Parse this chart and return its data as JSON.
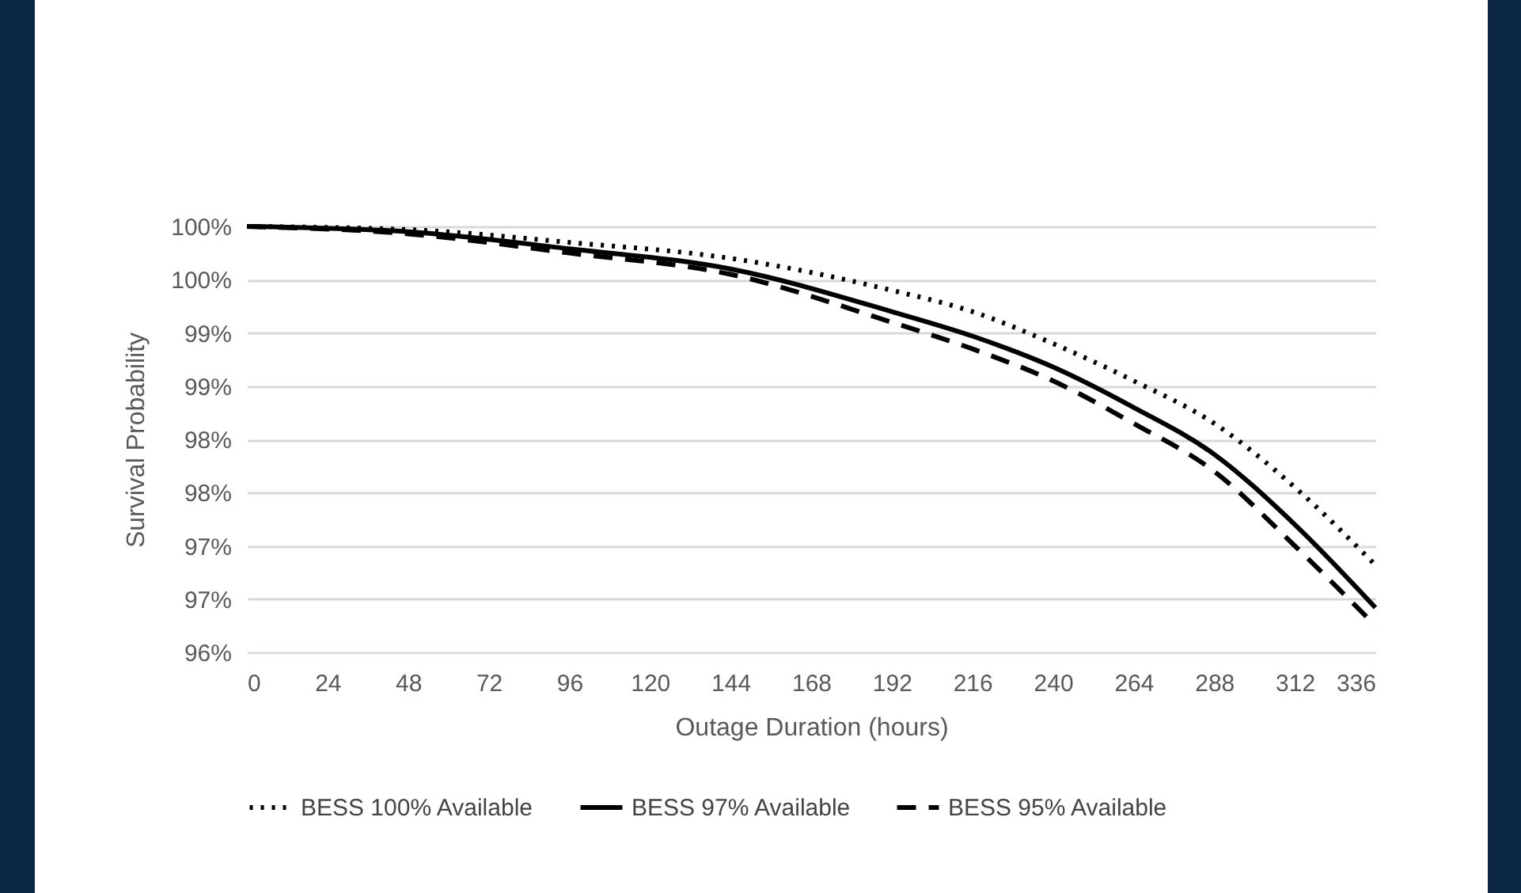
{
  "chart_data": {
    "type": "line",
    "xlabel": "Outage Duration (hours)",
    "ylabel": "Survival Probability",
    "x": [
      0,
      48,
      96,
      144,
      192,
      216,
      240,
      264,
      288,
      312,
      336
    ],
    "series": [
      {
        "name": "BESS 100% Available",
        "color": "#000000",
        "line_style": "dotted",
        "values": [
          100,
          99.97,
          99.85,
          99.7,
          99.4,
          99.2,
          98.9,
          98.55,
          98.15,
          97.55,
          96.82
        ]
      },
      {
        "name": "BESS 97% Available",
        "color": "#000000",
        "line_style": "solid",
        "values": [
          100,
          99.95,
          99.79,
          99.6,
          99.2,
          98.97,
          98.68,
          98.3,
          97.86,
          97.2,
          96.42
        ]
      },
      {
        "name": "BESS 95% Available",
        "color": "#000000",
        "line_style": "dashed",
        "values": [
          100,
          99.93,
          99.75,
          99.55,
          99.1,
          98.85,
          98.55,
          98.15,
          97.7,
          97.0,
          96.25
        ]
      }
    ],
    "xlim": [
      0,
      336
    ],
    "xticks": [
      0,
      24,
      48,
      72,
      96,
      120,
      144,
      168,
      192,
      216,
      240,
      264,
      288,
      312,
      336
    ],
    "ylim": [
      96,
      100
    ],
    "yticks": [
      {
        "value": 100,
        "label": "100%"
      },
      {
        "value": 99.5,
        "label": "100%"
      },
      {
        "value": 99,
        "label": "99%"
      },
      {
        "value": 98.5,
        "label": "99%"
      },
      {
        "value": 98,
        "label": "98%"
      },
      {
        "value": 97.5,
        "label": "98%"
      },
      {
        "value": 97,
        "label": "97%"
      },
      {
        "value": 96.5,
        "label": "97%"
      },
      {
        "value": 96,
        "label": "96%"
      }
    ],
    "grid": "y",
    "legend": "bottom",
    "marker": "none"
  }
}
